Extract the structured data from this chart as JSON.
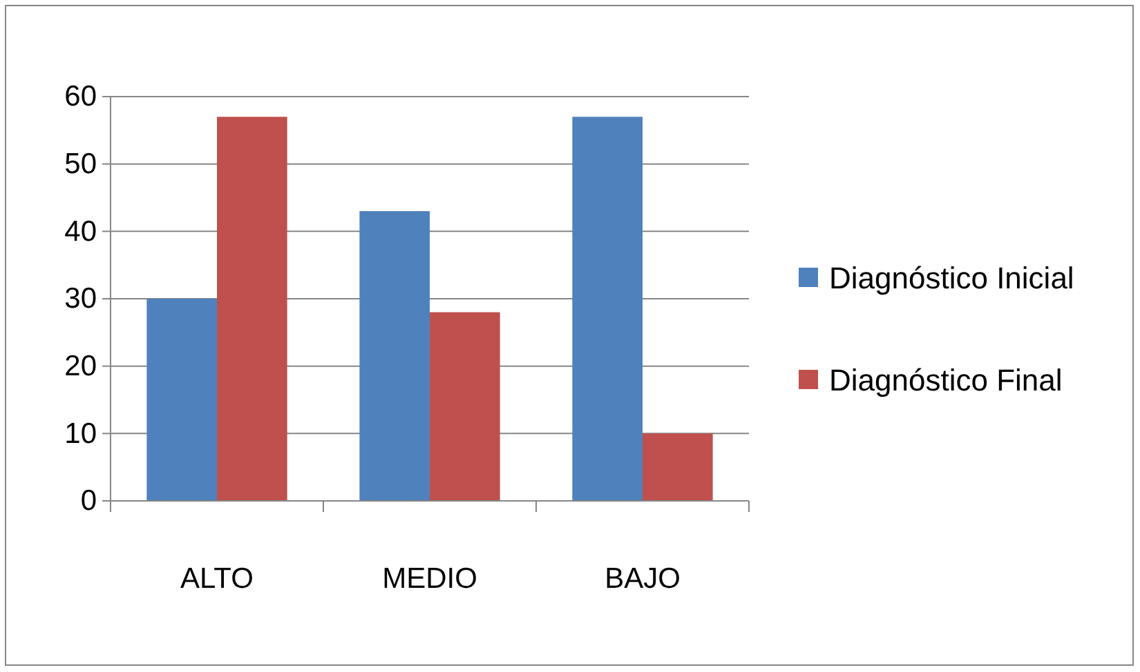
{
  "chart_data": {
    "type": "bar",
    "categories": [
      "ALTO",
      "MEDIO",
      "BAJO"
    ],
    "series": [
      {
        "name": "Diagnóstico Inicial",
        "color": "#4f81bd",
        "values": [
          30,
          43,
          57
        ]
      },
      {
        "name": "Diagnóstico Final",
        "color": "#c0504d",
        "values": [
          57,
          28,
          10
        ]
      }
    ],
    "ylim": [
      0,
      60
    ],
    "yticks": [
      0,
      10,
      20,
      30,
      40,
      50,
      60
    ],
    "grid": "y",
    "legend": "right"
  }
}
